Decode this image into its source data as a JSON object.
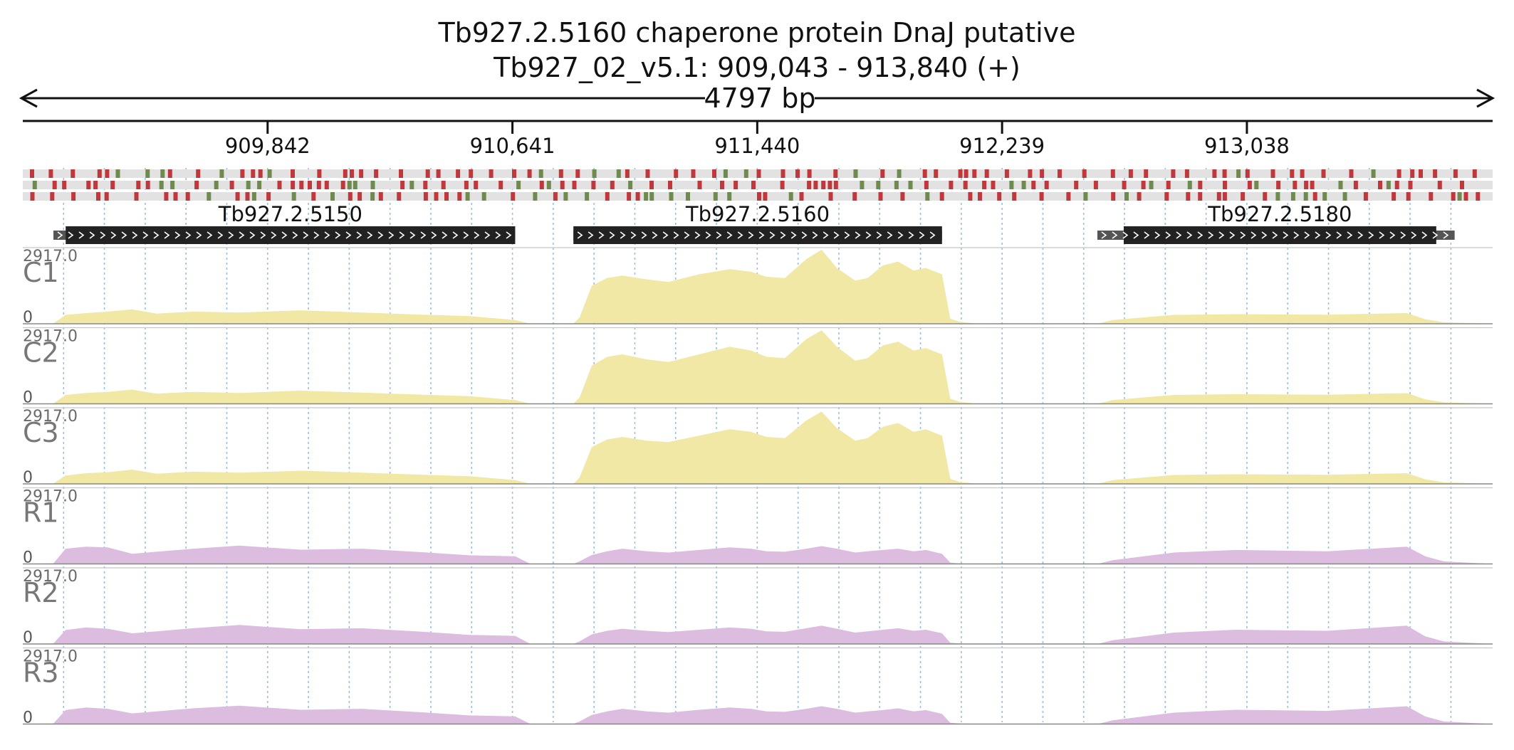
{
  "header": {
    "title": "Tb927.2.5160  chaperone protein DnaJ  putative",
    "locus": "Tb927_02_v5.1: 909,043 - 913,840 (+)",
    "span_label": "4797 bp"
  },
  "chart_data": {
    "type": "area",
    "region": {
      "chromosome": "Tb927_02_v5.1",
      "start": 909043,
      "end": 913840,
      "strand": "+",
      "length_bp": 4797
    },
    "axis_ticks": [
      {
        "pos": 909842,
        "label": "909,842"
      },
      {
        "pos": 910641,
        "label": "910,641"
      },
      {
        "pos": 911440,
        "label": "911,440"
      },
      {
        "pos": 912239,
        "label": "912,239"
      },
      {
        "pos": 913038,
        "label": "913,038"
      }
    ],
    "genes": [
      {
        "id": "Tb927.2.5150",
        "utr_start": 909143,
        "cds_start": 909183,
        "cds_end": 910650,
        "utr_end": 910650,
        "strand": "+"
      },
      {
        "id": "Tb927.2.5160",
        "utr_start": 910840,
        "cds_start": 910840,
        "cds_end": 912043,
        "utr_end": 912043,
        "strand": "+"
      },
      {
        "id": "Tb927.2.5180",
        "utr_start": 912550,
        "cds_start": 912636,
        "cds_end": 913656,
        "utr_end": 913716,
        "strand": "+"
      }
    ],
    "ymax_label": "2917.0",
    "ymin_label": "0",
    "ylim": [
      0,
      2917
    ],
    "coverage_x": [
      909043,
      909143,
      909183,
      909250,
      909320,
      909400,
      909480,
      909600,
      909750,
      909950,
      910150,
      910350,
      910500,
      910650,
      910700,
      910840,
      910860,
      910900,
      910950,
      911000,
      911080,
      911150,
      911250,
      911350,
      911420,
      911470,
      911530,
      911600,
      911650,
      911700,
      911760,
      911800,
      911850,
      911900,
      911950,
      911990,
      912043,
      912070,
      912100,
      912160,
      912550,
      912600,
      912800,
      913000,
      913300,
      913560,
      913620,
      913680,
      913840
    ],
    "series": [
      {
        "name": "C1",
        "color": "#f0e8a4",
        "values": [
          0,
          15,
          350,
          420,
          480,
          570,
          400,
          480,
          440,
          530,
          440,
          360,
          300,
          150,
          0,
          0,
          250,
          1500,
          1800,
          1900,
          1750,
          1650,
          1950,
          2150,
          2050,
          1850,
          1800,
          2550,
          2917,
          2200,
          1700,
          1800,
          2300,
          2450,
          2100,
          2200,
          1950,
          200,
          80,
          0,
          0,
          150,
          350,
          380,
          360,
          420,
          180,
          60,
          0
        ]
      },
      {
        "name": "C2",
        "color": "#f0e8a4",
        "values": [
          0,
          15,
          350,
          430,
          470,
          560,
          400,
          470,
          430,
          520,
          440,
          360,
          300,
          150,
          0,
          0,
          250,
          1500,
          1850,
          1950,
          1750,
          1650,
          1950,
          2250,
          2100,
          1850,
          1800,
          2550,
          2900,
          2250,
          1700,
          1800,
          2300,
          2450,
          2100,
          2200,
          1950,
          200,
          80,
          0,
          0,
          150,
          350,
          380,
          360,
          420,
          180,
          60,
          0
        ]
      },
      {
        "name": "C3",
        "color": "#f0e8a4",
        "values": [
          0,
          15,
          330,
          420,
          460,
          560,
          400,
          480,
          440,
          520,
          440,
          360,
          300,
          150,
          0,
          0,
          250,
          1450,
          1750,
          1850,
          1700,
          1650,
          1900,
          2150,
          2050,
          1850,
          1800,
          2500,
          2850,
          2200,
          1700,
          1800,
          2250,
          2400,
          2050,
          2150,
          1900,
          200,
          80,
          0,
          0,
          150,
          350,
          380,
          360,
          420,
          180,
          60,
          0
        ]
      },
      {
        "name": "R1",
        "color": "#dcbcdf",
        "values": [
          0,
          20,
          600,
          680,
          650,
          400,
          480,
          600,
          720,
          560,
          600,
          460,
          340,
          300,
          0,
          0,
          100,
          350,
          500,
          600,
          500,
          450,
          550,
          650,
          600,
          500,
          480,
          600,
          700,
          600,
          450,
          500,
          550,
          600,
          500,
          550,
          400,
          50,
          20,
          0,
          0,
          150,
          450,
          550,
          500,
          680,
          300,
          100,
          0
        ]
      },
      {
        "name": "R2",
        "color": "#dcbcdf",
        "values": [
          0,
          20,
          550,
          650,
          600,
          420,
          500,
          620,
          750,
          580,
          620,
          480,
          360,
          320,
          0,
          0,
          100,
          380,
          520,
          600,
          520,
          470,
          560,
          650,
          600,
          500,
          480,
          620,
          720,
          600,
          450,
          500,
          560,
          620,
          520,
          560,
          420,
          50,
          20,
          0,
          0,
          150,
          450,
          560,
          520,
          720,
          300,
          100,
          0
        ]
      },
      {
        "name": "R3",
        "color": "#dcbcdf",
        "values": [
          0,
          20,
          550,
          650,
          600,
          420,
          500,
          620,
          720,
          560,
          600,
          460,
          340,
          300,
          0,
          0,
          100,
          360,
          500,
          600,
          500,
          450,
          560,
          650,
          600,
          500,
          480,
          600,
          700,
          600,
          450,
          500,
          550,
          620,
          500,
          550,
          400,
          50,
          20,
          0,
          0,
          150,
          450,
          560,
          520,
          700,
          300,
          100,
          0
        ]
      }
    ]
  },
  "colors": {
    "stop_codon": "#c0383c",
    "start_codon": "#6f8a4d",
    "frame_bg": "#e2e2e2",
    "gene_cds": "#222222",
    "gene_utr": "#555555",
    "grid": "#9bbfe0"
  }
}
